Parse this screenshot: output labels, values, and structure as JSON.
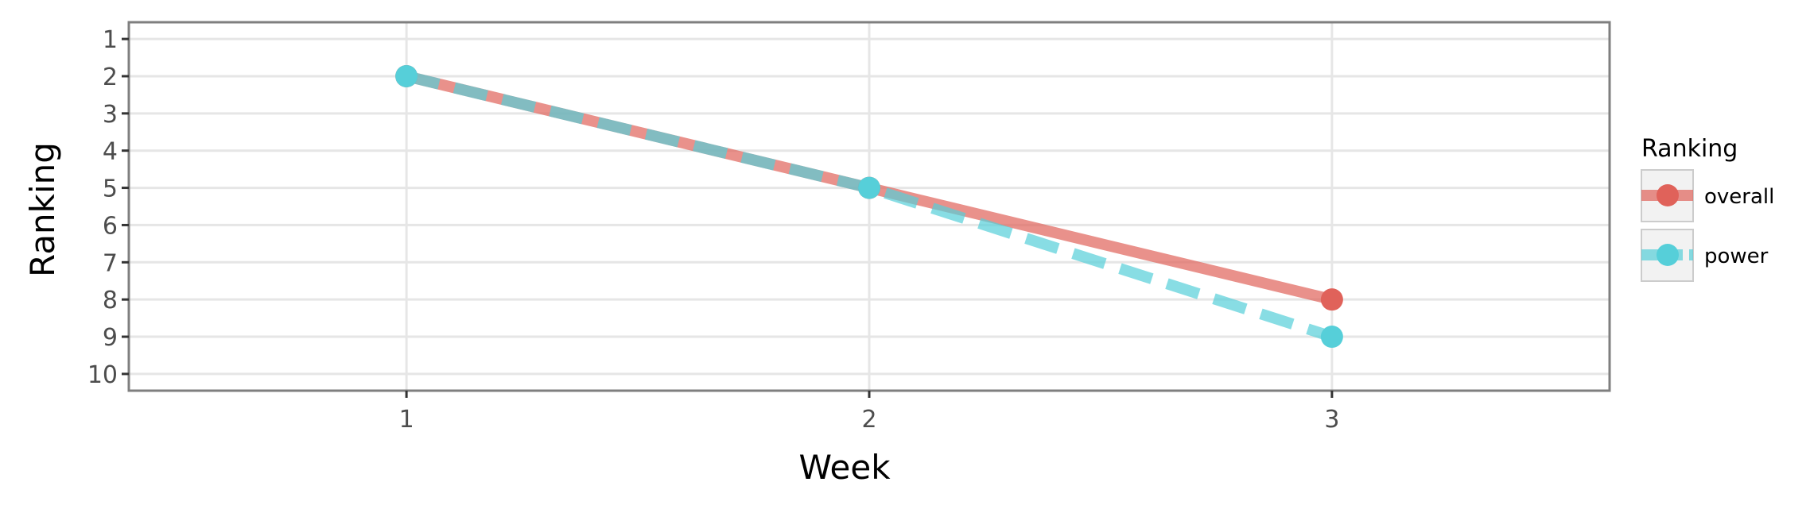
{
  "chart_data": {
    "type": "line",
    "xlabel": "Week",
    "ylabel": "Ranking",
    "x": [
      1,
      2,
      3
    ],
    "xlim": [
      0.4,
      3.6
    ],
    "ylim": [
      10.45,
      0.55
    ],
    "y_reversed": true,
    "x_ticks": [
      1,
      2,
      3
    ],
    "y_ticks": [
      1,
      2,
      3,
      4,
      5,
      6,
      7,
      8,
      9,
      10
    ],
    "grid": true,
    "legend": {
      "title": "Ranking",
      "position": "right"
    },
    "series": [
      {
        "name": "overall",
        "values": [
          2,
          5,
          8
        ],
        "color": "#e0625a",
        "line_style": "solid"
      },
      {
        "name": "power",
        "values": [
          2,
          5,
          9
        ],
        "color": "#56cfd9",
        "line_style": "dashed"
      }
    ]
  }
}
